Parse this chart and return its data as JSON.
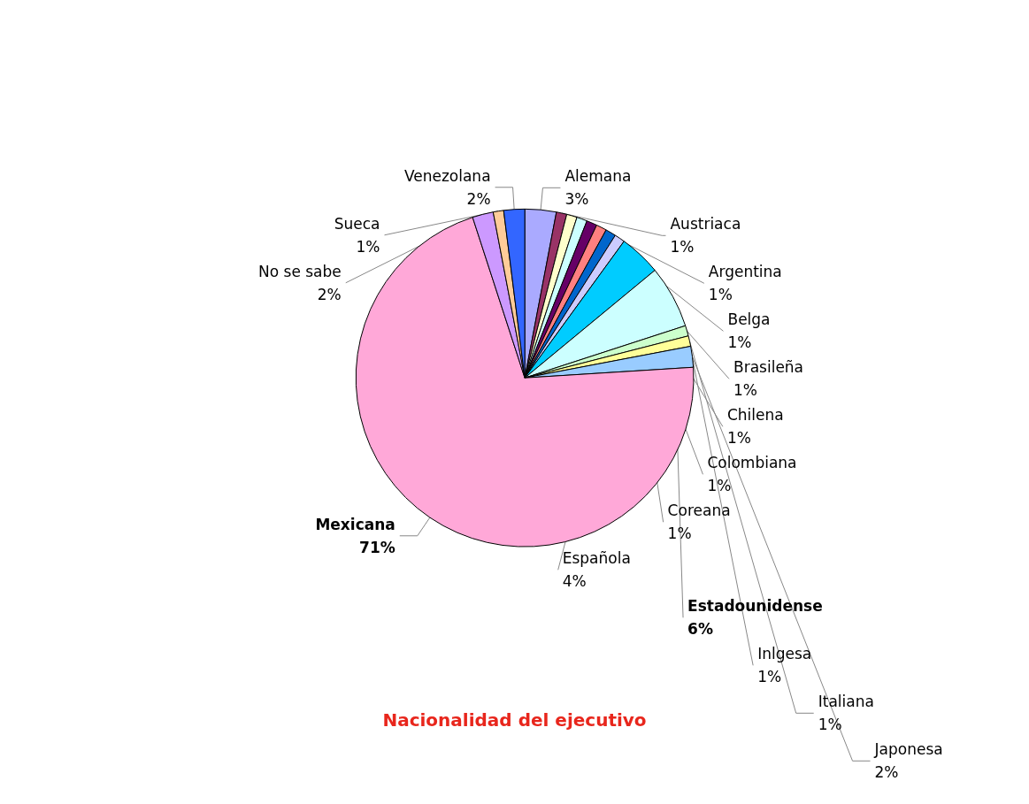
{
  "chart_data": {
    "type": "pie",
    "title": "Nacionalidad del ejecutivo",
    "categories": [
      "Alemana",
      "Austriaca",
      "Argentina",
      "Belga",
      "Brasileña",
      "Chilena",
      "Colombiana",
      "Coreana",
      "Española",
      "Estadounidense",
      "Inlgesa",
      "Italiana",
      "Japonesa",
      "Mexicana",
      "No se sabe",
      "Sueca",
      "Venezolana"
    ],
    "values": [
      3,
      1,
      1,
      1,
      1,
      1,
      1,
      1,
      4,
      6,
      1,
      1,
      2,
      71,
      2,
      1,
      2
    ],
    "value_labels": [
      "3%",
      "1%",
      "1%",
      "1%",
      "1%",
      "1%",
      "1%",
      "1%",
      "4%",
      "6%",
      "1%",
      "1%",
      "2%",
      "71%",
      "2%",
      "1%",
      "2%"
    ],
    "colors": [
      "#aaaaff",
      "#993366",
      "#ffffcc",
      "#ccffff",
      "#660066",
      "#ff8080",
      "#0066cc",
      "#ccccff",
      "#00ccff",
      "#ccffff",
      "#ccffcc",
      "#ffff99",
      "#99ccff",
      "#ffa8d8",
      "#cc99ff",
      "#ffcc99",
      "#3366ff"
    ],
    "legend": false
  }
}
